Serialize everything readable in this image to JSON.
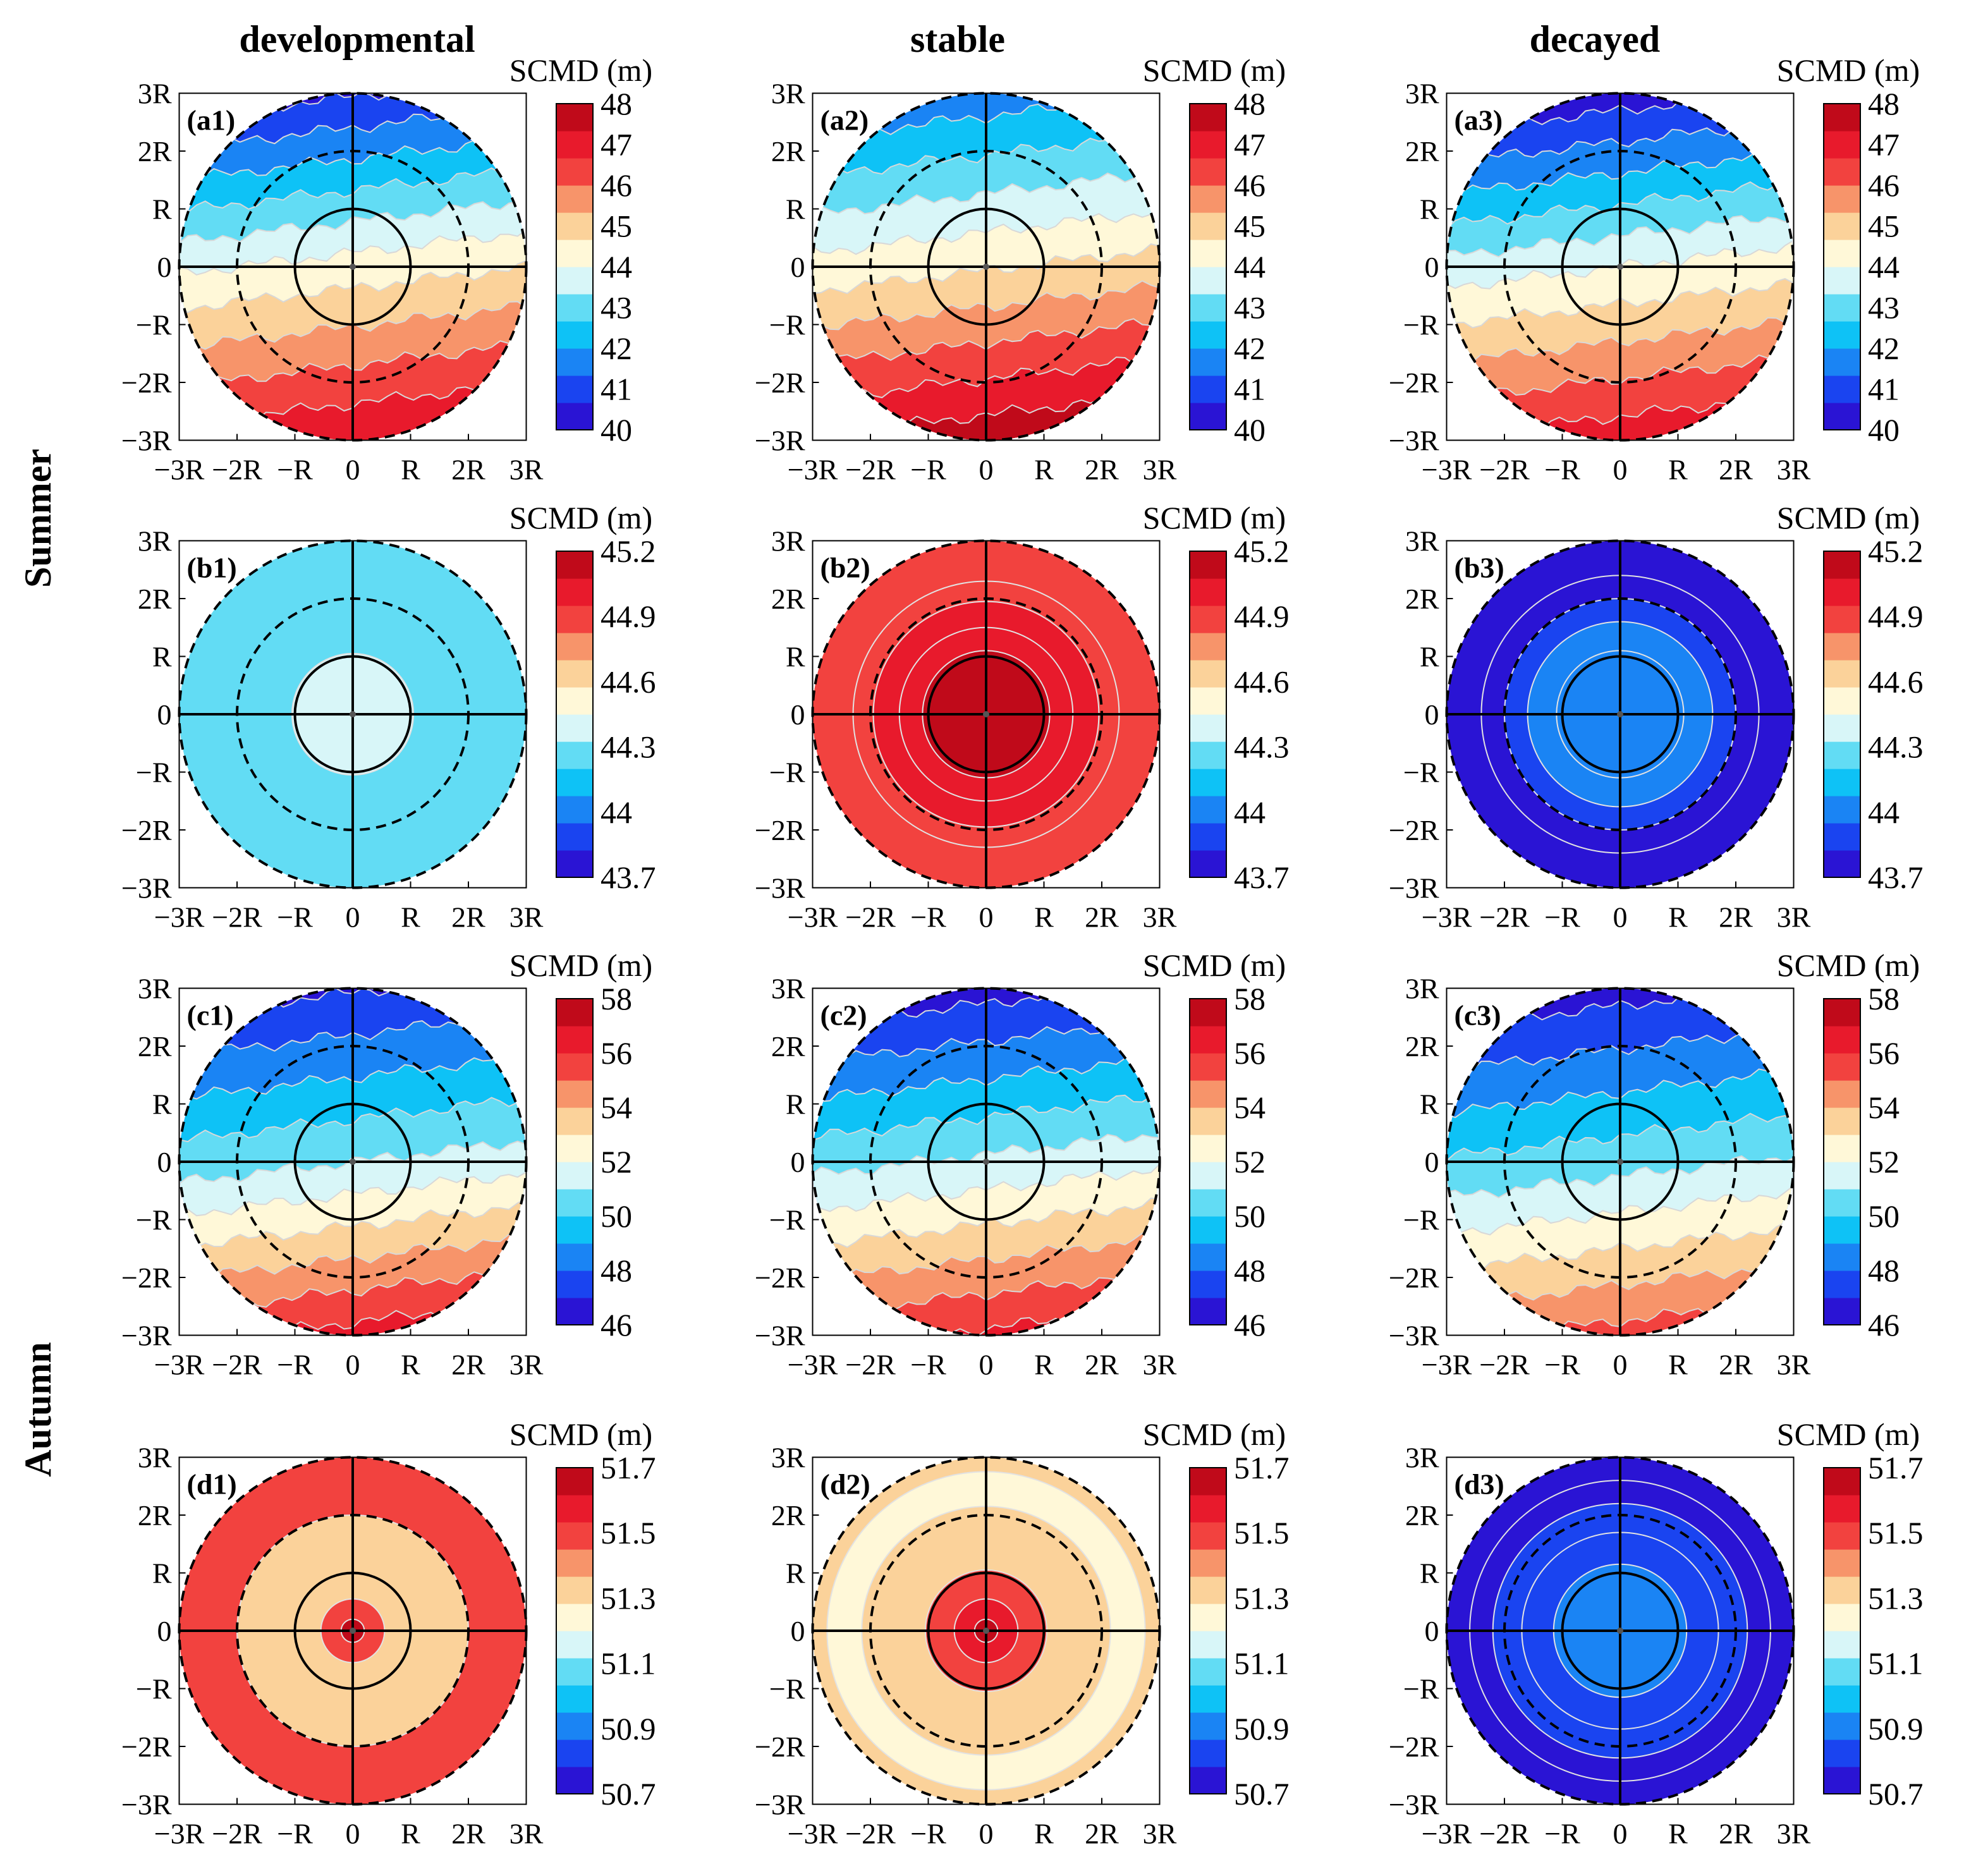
{
  "figure": {
    "column_titles": [
      "developmental",
      "stable",
      "decayed"
    ],
    "row_group_labels": [
      "Summer",
      "Autumn"
    ]
  },
  "colors": {
    "scale": [
      "#2a14d4",
      "#1a44f0",
      "#1a84f4",
      "#0ec2f6",
      "#62dcf4",
      "#d8f6f8",
      "#fff8d8",
      "#fbd29a",
      "#f7946a",
      "#f2423f",
      "#e81a2c",
      "#c00a1a"
    ]
  },
  "chart_data": [
    {
      "id": "a1",
      "panel_label": "(a1)",
      "column": "developmental",
      "season": "Summer",
      "type": "heatmap",
      "pattern": "gradient",
      "colorbar_title": "SCMD (m)",
      "colorbar_ticks": [
        "48",
        "47",
        "46",
        "45",
        "44",
        "43",
        "42",
        "41",
        "40"
      ],
      "clim": [
        40,
        48
      ],
      "field": {
        "north_value": 40.6,
        "south_value": 47.3,
        "center_value": 44.3
      },
      "xlabel_ticks": [
        "−3R",
        "−2R",
        "−R",
        "0",
        "R",
        "2R",
        "3R"
      ],
      "ylabel_ticks": [
        "3R",
        "2R",
        "R",
        "0",
        "−R",
        "−2R",
        "−3R"
      ],
      "xlim": [
        -3,
        3
      ],
      "ylim": [
        -3,
        3
      ]
    },
    {
      "id": "a2",
      "panel_label": "(a2)",
      "column": "stable",
      "season": "Summer",
      "type": "heatmap",
      "pattern": "gradient",
      "colorbar_title": "SCMD (m)",
      "colorbar_ticks": [
        "48",
        "47",
        "46",
        "45",
        "44",
        "43",
        "42",
        "41",
        "40"
      ],
      "clim": [
        40,
        48
      ],
      "field": {
        "north_value": 41.6,
        "south_value": 47.8,
        "center_value": 44.6
      },
      "xlabel_ticks": [
        "−3R",
        "−2R",
        "−R",
        "0",
        "R",
        "2R",
        "3R"
      ],
      "ylabel_ticks": [
        "3R",
        "2R",
        "R",
        "0",
        "−R",
        "−2R",
        "−3R"
      ],
      "xlim": [
        -3,
        3
      ],
      "ylim": [
        -3,
        3
      ]
    },
    {
      "id": "a3",
      "panel_label": "(a3)",
      "column": "decayed",
      "season": "Summer",
      "type": "heatmap",
      "pattern": "gradient",
      "colorbar_title": "SCMD (m)",
      "colorbar_ticks": [
        "48",
        "47",
        "46",
        "45",
        "44",
        "43",
        "42",
        "41",
        "40"
      ],
      "clim": [
        40,
        48
      ],
      "field": {
        "north_value": 40.3,
        "south_value": 47.1,
        "center_value": 44.0
      },
      "xlabel_ticks": [
        "−3R",
        "−2R",
        "−R",
        "0",
        "R",
        "2R",
        "3R"
      ],
      "ylabel_ticks": [
        "3R",
        "2R",
        "R",
        "0",
        "−R",
        "−2R",
        "−3R"
      ],
      "xlim": [
        -3,
        3
      ],
      "ylim": [
        -3,
        3
      ]
    },
    {
      "id": "b1",
      "panel_label": "(b1)",
      "column": "developmental",
      "season": "Summer",
      "type": "heatmap",
      "pattern": "radial",
      "colorbar_title": "SCMD (m)",
      "colorbar_ticks": [
        "45.2",
        "44.9",
        "44.6",
        "44.3",
        "44",
        "43.7"
      ],
      "clim": [
        43.7,
        45.2
      ],
      "field": {
        "rings": [
          {
            "r_max": 1.05,
            "value": 44.35
          },
          {
            "r_max": 3.0,
            "value": 44.22
          }
        ]
      },
      "xlabel_ticks": [
        "−3R",
        "−2R",
        "−R",
        "0",
        "R",
        "2R",
        "3R"
      ],
      "ylabel_ticks": [
        "3R",
        "2R",
        "R",
        "0",
        "−R",
        "−2R",
        "−3R"
      ],
      "xlim": [
        -3,
        3
      ],
      "ylim": [
        -3,
        3
      ]
    },
    {
      "id": "b2",
      "panel_label": "(b2)",
      "column": "stable",
      "season": "Summer",
      "type": "heatmap",
      "pattern": "radial",
      "colorbar_title": "SCMD (m)",
      "colorbar_ticks": [
        "45.2",
        "44.9",
        "44.6",
        "44.3",
        "44",
        "43.7"
      ],
      "clim": [
        43.7,
        45.2
      ],
      "field": {
        "rings": [
          {
            "r_max": 1.1,
            "value": 45.15
          },
          {
            "r_max": 1.5,
            "value": 45.05
          },
          {
            "r_max": 1.95,
            "value": 44.98
          },
          {
            "r_max": 2.3,
            "value": 44.92
          },
          {
            "r_max": 3.0,
            "value": 44.85
          }
        ]
      },
      "xlabel_ticks": [
        "−3R",
        "−2R",
        "−R",
        "0",
        "R",
        "2R",
        "3R"
      ],
      "ylabel_ticks": [
        "3R",
        "2R",
        "R",
        "0",
        "−R",
        "−2R",
        "−3R"
      ],
      "xlim": [
        -3,
        3
      ],
      "ylim": [
        -3,
        3
      ]
    },
    {
      "id": "b3",
      "panel_label": "(b3)",
      "column": "decayed",
      "season": "Summer",
      "type": "heatmap",
      "pattern": "radial",
      "colorbar_title": "SCMD (m)",
      "colorbar_ticks": [
        "45.2",
        "44.9",
        "44.6",
        "44.3",
        "44",
        "43.7"
      ],
      "clim": [
        43.7,
        45.2
      ],
      "field": {
        "rings": [
          {
            "r_max": 1.1,
            "value": 44.05
          },
          {
            "r_max": 1.6,
            "value": 43.95
          },
          {
            "r_max": 2.0,
            "value": 43.88
          },
          {
            "r_max": 2.4,
            "value": 43.82
          },
          {
            "r_max": 3.0,
            "value": 43.75
          }
        ]
      },
      "xlabel_ticks": [
        "−3R",
        "−2R",
        "−R",
        "0",
        "R",
        "2R",
        "3R"
      ],
      "ylabel_ticks": [
        "3R",
        "2R",
        "R",
        "0",
        "−R",
        "−2R",
        "−3R"
      ],
      "xlim": [
        -3,
        3
      ],
      "ylim": [
        -3,
        3
      ]
    },
    {
      "id": "c1",
      "panel_label": "(c1)",
      "column": "developmental",
      "season": "Autumn",
      "type": "heatmap",
      "pattern": "gradient",
      "colorbar_title": "SCMD (m)",
      "colorbar_ticks": [
        "58",
        "56",
        "54",
        "52",
        "50",
        "48",
        "46"
      ],
      "clim": [
        46,
        58
      ],
      "field": {
        "north_value": 46.9,
        "south_value": 56.4,
        "center_value": 51.0
      },
      "xlabel_ticks": [
        "−3R",
        "−2R",
        "−R",
        "0",
        "R",
        "2R",
        "3R"
      ],
      "ylabel_ticks": [
        "3R",
        "2R",
        "R",
        "0",
        "−R",
        "−2R",
        "−3R"
      ],
      "xlim": [
        -3,
        3
      ],
      "ylim": [
        -3,
        3
      ]
    },
    {
      "id": "c2",
      "panel_label": "(c2)",
      "column": "stable",
      "season": "Autumn",
      "type": "heatmap",
      "pattern": "gradient",
      "colorbar_title": "SCMD (m)",
      "colorbar_ticks": [
        "58",
        "56",
        "54",
        "52",
        "50",
        "48",
        "46"
      ],
      "clim": [
        46,
        58
      ],
      "field": {
        "north_value": 46.6,
        "south_value": 56.2,
        "center_value": 51.2
      },
      "xlabel_ticks": [
        "−3R",
        "−2R",
        "−R",
        "0",
        "R",
        "2R",
        "3R"
      ],
      "ylabel_ticks": [
        "3R",
        "2R",
        "R",
        "0",
        "−R",
        "−2R",
        "−3R"
      ],
      "xlim": [
        -3,
        3
      ],
      "ylim": [
        -3,
        3
      ]
    },
    {
      "id": "c3",
      "panel_label": "(c3)",
      "column": "decayed",
      "season": "Autumn",
      "type": "heatmap",
      "pattern": "gradient",
      "colorbar_title": "SCMD (m)",
      "colorbar_ticks": [
        "58",
        "56",
        "54",
        "52",
        "50",
        "48",
        "46"
      ],
      "clim": [
        46,
        58
      ],
      "field": {
        "north_value": 46.6,
        "south_value": 55.4,
        "center_value": 50.6
      },
      "xlabel_ticks": [
        "−3R",
        "−2R",
        "−R",
        "0",
        "R",
        "2R",
        "3R"
      ],
      "ylabel_ticks": [
        "3R",
        "2R",
        "R",
        "0",
        "−R",
        "−2R",
        "−3R"
      ],
      "xlim": [
        -3,
        3
      ],
      "ylim": [
        -3,
        3
      ]
    },
    {
      "id": "d1",
      "panel_label": "(d1)",
      "column": "developmental",
      "season": "Autumn",
      "type": "heatmap",
      "pattern": "radial",
      "colorbar_title": "SCMD (m)",
      "colorbar_ticks": [
        "51.7",
        "51.5",
        "51.3",
        "51.1",
        "50.9",
        "50.7"
      ],
      "clim": [
        50.7,
        51.7
      ],
      "field": {
        "rings": [
          {
            "r_max": 0.2,
            "value": 51.65
          },
          {
            "r_max": 0.55,
            "value": 51.5
          },
          {
            "r_max": 2.0,
            "value": 51.35
          },
          {
            "r_max": 3.0,
            "value": 51.45
          }
        ]
      },
      "xlabel_ticks": [
        "−3R",
        "−2R",
        "−R",
        "0",
        "R",
        "2R",
        "3R"
      ],
      "ylabel_ticks": [
        "3R",
        "2R",
        "R",
        "0",
        "−R",
        "−2R",
        "−3R"
      ],
      "xlim": [
        -3,
        3
      ],
      "ylim": [
        -3,
        3
      ]
    },
    {
      "id": "d2",
      "panel_label": "(d2)",
      "column": "stable",
      "season": "Autumn",
      "type": "heatmap",
      "pattern": "radial",
      "colorbar_title": "SCMD (m)",
      "colorbar_ticks": [
        "51.7",
        "51.5",
        "51.3",
        "51.1",
        "50.9",
        "50.7"
      ],
      "clim": [
        50.7,
        51.7
      ],
      "field": {
        "rings": [
          {
            "r_max": 0.2,
            "value": 51.65
          },
          {
            "r_max": 0.55,
            "value": 51.55
          },
          {
            "r_max": 1.05,
            "value": 51.45
          },
          {
            "r_max": 2.15,
            "value": 51.35
          },
          {
            "r_max": 2.75,
            "value": 51.25
          },
          {
            "r_max": 3.0,
            "value": 51.35
          }
        ]
      },
      "xlabel_ticks": [
        "−3R",
        "−2R",
        "−R",
        "0",
        "R",
        "2R",
        "3R"
      ],
      "ylabel_ticks": [
        "3R",
        "2R",
        "R",
        "0",
        "−R",
        "−2R",
        "−3R"
      ],
      "xlim": [
        -3,
        3
      ],
      "ylim": [
        -3,
        3
      ]
    },
    {
      "id": "d3",
      "panel_label": "(d3)",
      "column": "decayed",
      "season": "Autumn",
      "type": "heatmap",
      "pattern": "radial",
      "colorbar_title": "SCMD (m)",
      "colorbar_ticks": [
        "51.7",
        "51.5",
        "51.3",
        "51.1",
        "50.9",
        "50.7"
      ],
      "clim": [
        50.7,
        51.7
      ],
      "field": {
        "rings": [
          {
            "r_max": 1.15,
            "value": 50.92
          },
          {
            "r_max": 1.7,
            "value": 50.85
          },
          {
            "r_max": 2.2,
            "value": 50.8
          },
          {
            "r_max": 2.6,
            "value": 50.75
          },
          {
            "r_max": 3.0,
            "value": 50.72
          }
        ]
      },
      "xlabel_ticks": [
        "−3R",
        "−2R",
        "−R",
        "0",
        "R",
        "2R",
        "3R"
      ],
      "ylabel_ticks": [
        "3R",
        "2R",
        "R",
        "0",
        "−R",
        "−2R",
        "−3R"
      ],
      "xlim": [
        -3,
        3
      ],
      "ylim": [
        -3,
        3
      ]
    }
  ]
}
